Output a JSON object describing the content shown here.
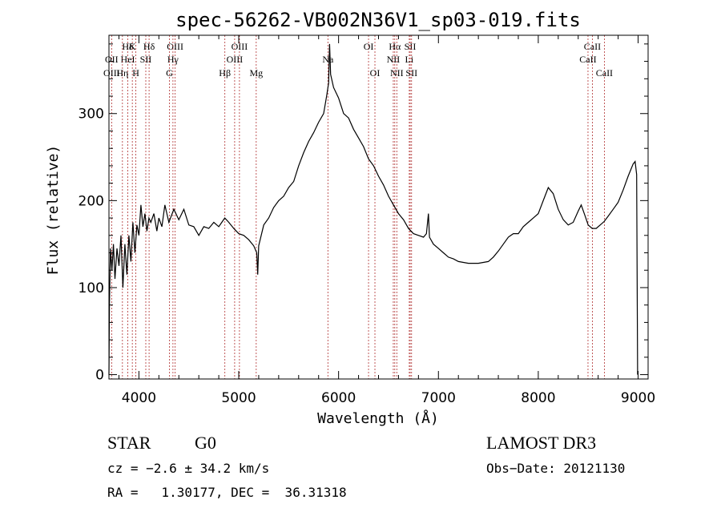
{
  "chart_data": {
    "type": "line",
    "title": "spec-56262-VB002N36V1_sp03-019.fits",
    "xlabel": "Wavelength (Å)",
    "ylabel": "Flux (relative)",
    "xlim": [
      3700,
      9100
    ],
    "ylim": [
      -5,
      390
    ],
    "xticks": [
      4000,
      5000,
      6000,
      7000,
      8000,
      9000
    ],
    "yticks": [
      0,
      100,
      200,
      300
    ],
    "grid": false,
    "series": [
      {
        "points": [
          [
            3700,
            0
          ],
          [
            3705,
            80
          ],
          [
            3715,
            145
          ],
          [
            3730,
            120
          ],
          [
            3745,
            150
          ],
          [
            3760,
            110
          ],
          [
            3780,
            145
          ],
          [
            3800,
            125
          ],
          [
            3820,
            160
          ],
          [
            3840,
            100
          ],
          [
            3860,
            150
          ],
          [
            3880,
            115
          ],
          [
            3900,
            160
          ],
          [
            3920,
            130
          ],
          [
            3940,
            175
          ],
          [
            3960,
            140
          ],
          [
            3980,
            172
          ],
          [
            4000,
            160
          ],
          [
            4020,
            195
          ],
          [
            4040,
            170
          ],
          [
            4060,
            185
          ],
          [
            4080,
            165
          ],
          [
            4100,
            180
          ],
          [
            4120,
            175
          ],
          [
            4150,
            185
          ],
          [
            4180,
            165
          ],
          [
            4200,
            180
          ],
          [
            4230,
            170
          ],
          [
            4260,
            195
          ],
          [
            4300,
            175
          ],
          [
            4350,
            190
          ],
          [
            4400,
            178
          ],
          [
            4450,
            190
          ],
          [
            4500,
            172
          ],
          [
            4550,
            170
          ],
          [
            4600,
            160
          ],
          [
            4650,
            170
          ],
          [
            4700,
            168
          ],
          [
            4750,
            175
          ],
          [
            4800,
            170
          ],
          [
            4860,
            180
          ],
          [
            4900,
            175
          ],
          [
            4950,
            168
          ],
          [
            5000,
            162
          ],
          [
            5050,
            160
          ],
          [
            5100,
            155
          ],
          [
            5150,
            148
          ],
          [
            5180,
            140
          ],
          [
            5190,
            115
          ],
          [
            5200,
            148
          ],
          [
            5250,
            172
          ],
          [
            5300,
            180
          ],
          [
            5350,
            192
          ],
          [
            5400,
            200
          ],
          [
            5450,
            205
          ],
          [
            5500,
            215
          ],
          [
            5550,
            222
          ],
          [
            5600,
            240
          ],
          [
            5650,
            255
          ],
          [
            5700,
            268
          ],
          [
            5750,
            278
          ],
          [
            5800,
            290
          ],
          [
            5850,
            300
          ],
          [
            5880,
            320
          ],
          [
            5900,
            335
          ],
          [
            5910,
            380
          ],
          [
            5920,
            345
          ],
          [
            5950,
            330
          ],
          [
            6000,
            318
          ],
          [
            6050,
            300
          ],
          [
            6100,
            295
          ],
          [
            6150,
            282
          ],
          [
            6200,
            272
          ],
          [
            6250,
            262
          ],
          [
            6300,
            248
          ],
          [
            6350,
            240
          ],
          [
            6400,
            228
          ],
          [
            6450,
            218
          ],
          [
            6500,
            205
          ],
          [
            6550,
            195
          ],
          [
            6600,
            185
          ],
          [
            6650,
            178
          ],
          [
            6700,
            168
          ],
          [
            6750,
            162
          ],
          [
            6800,
            160
          ],
          [
            6850,
            158
          ],
          [
            6880,
            162
          ],
          [
            6900,
            185
          ],
          [
            6910,
            158
          ],
          [
            6950,
            150
          ],
          [
            7000,
            145
          ],
          [
            7050,
            140
          ],
          [
            7100,
            135
          ],
          [
            7150,
            133
          ],
          [
            7200,
            130
          ],
          [
            7300,
            128
          ],
          [
            7400,
            128
          ],
          [
            7500,
            130
          ],
          [
            7550,
            135
          ],
          [
            7600,
            142
          ],
          [
            7650,
            150
          ],
          [
            7700,
            158
          ],
          [
            7750,
            162
          ],
          [
            7800,
            162
          ],
          [
            7850,
            170
          ],
          [
            7900,
            175
          ],
          [
            7950,
            180
          ],
          [
            8000,
            185
          ],
          [
            8050,
            200
          ],
          [
            8100,
            215
          ],
          [
            8150,
            208
          ],
          [
            8200,
            190
          ],
          [
            8250,
            178
          ],
          [
            8300,
            172
          ],
          [
            8350,
            175
          ],
          [
            8400,
            188
          ],
          [
            8430,
            195
          ],
          [
            8470,
            182
          ],
          [
            8500,
            172
          ],
          [
            8540,
            168
          ],
          [
            8580,
            168
          ],
          [
            8620,
            172
          ],
          [
            8660,
            176
          ],
          [
            8700,
            182
          ],
          [
            8750,
            190
          ],
          [
            8800,
            198
          ],
          [
            8850,
            212
          ],
          [
            8900,
            228
          ],
          [
            8950,
            242
          ],
          [
            8970,
            245
          ],
          [
            8985,
            230
          ],
          [
            8995,
            0
          ]
        ]
      }
    ],
    "lines": [
      {
        "label": "Hδ",
        "wl": 3889,
        "tier": 1
      },
      {
        "label": "OII",
        "wl": 3727,
        "tier": 2
      },
      {
        "label": "OIII",
        "wl": 3727,
        "tier": 3
      },
      {
        "label": "K",
        "wl": 3934,
        "tier": 1
      },
      {
        "label": "HeI",
        "wl": 3889,
        "tier": 2
      },
      {
        "label": "Hη",
        "wl": 3835,
        "tier": 3
      },
      {
        "label": "SII",
        "wl": 4069,
        "tier": 2
      },
      {
        "label": "H",
        "wl": 3969,
        "tier": 3
      },
      {
        "label": "Hδ",
        "wl": 4102,
        "tier": 1
      },
      {
        "label": "OIII",
        "wl": 4363,
        "tier": 1
      },
      {
        "label": "Hγ",
        "wl": 4341,
        "tier": 2
      },
      {
        "label": "G",
        "wl": 4305,
        "tier": 3
      },
      {
        "label": "Hβ",
        "wl": 4861,
        "tier": 3
      },
      {
        "label": "OIII",
        "wl": 5007,
        "tier": 1
      },
      {
        "label": "OIII",
        "wl": 4959,
        "tier": 2
      },
      {
        "label": "Mg",
        "wl": 5175,
        "tier": 3
      },
      {
        "label": "Na",
        "wl": 5893,
        "tier": 2
      },
      {
        "label": "OI",
        "wl": 6300,
        "tier": 1
      },
      {
        "label": "OI",
        "wl": 6364,
        "tier": 3
      },
      {
        "label": "Hα",
        "wl": 6563,
        "tier": 1
      },
      {
        "label": "SII",
        "wl": 6717,
        "tier": 1
      },
      {
        "label": "NII",
        "wl": 6548,
        "tier": 2
      },
      {
        "label": "Li",
        "wl": 6708,
        "tier": 2
      },
      {
        "label": "NII",
        "wl": 6583,
        "tier": 3
      },
      {
        "label": "SII",
        "wl": 6731,
        "tier": 3
      },
      {
        "label": "CaII",
        "wl": 8542,
        "tier": 1
      },
      {
        "label": "CaII",
        "wl": 8498,
        "tier": 2
      },
      {
        "label": "CaII",
        "wl": 8662,
        "tier": 3
      }
    ],
    "line_color": "#b03030"
  },
  "info": {
    "class": "STAR",
    "subclass": "G0",
    "survey": "LAMOST DR3",
    "cz": "cz = −2.6 ± 34.2 km/s",
    "obs_date": "Obs−Date: 20121130",
    "radec": "RA =   1.30177, DEC =  36.31318"
  }
}
